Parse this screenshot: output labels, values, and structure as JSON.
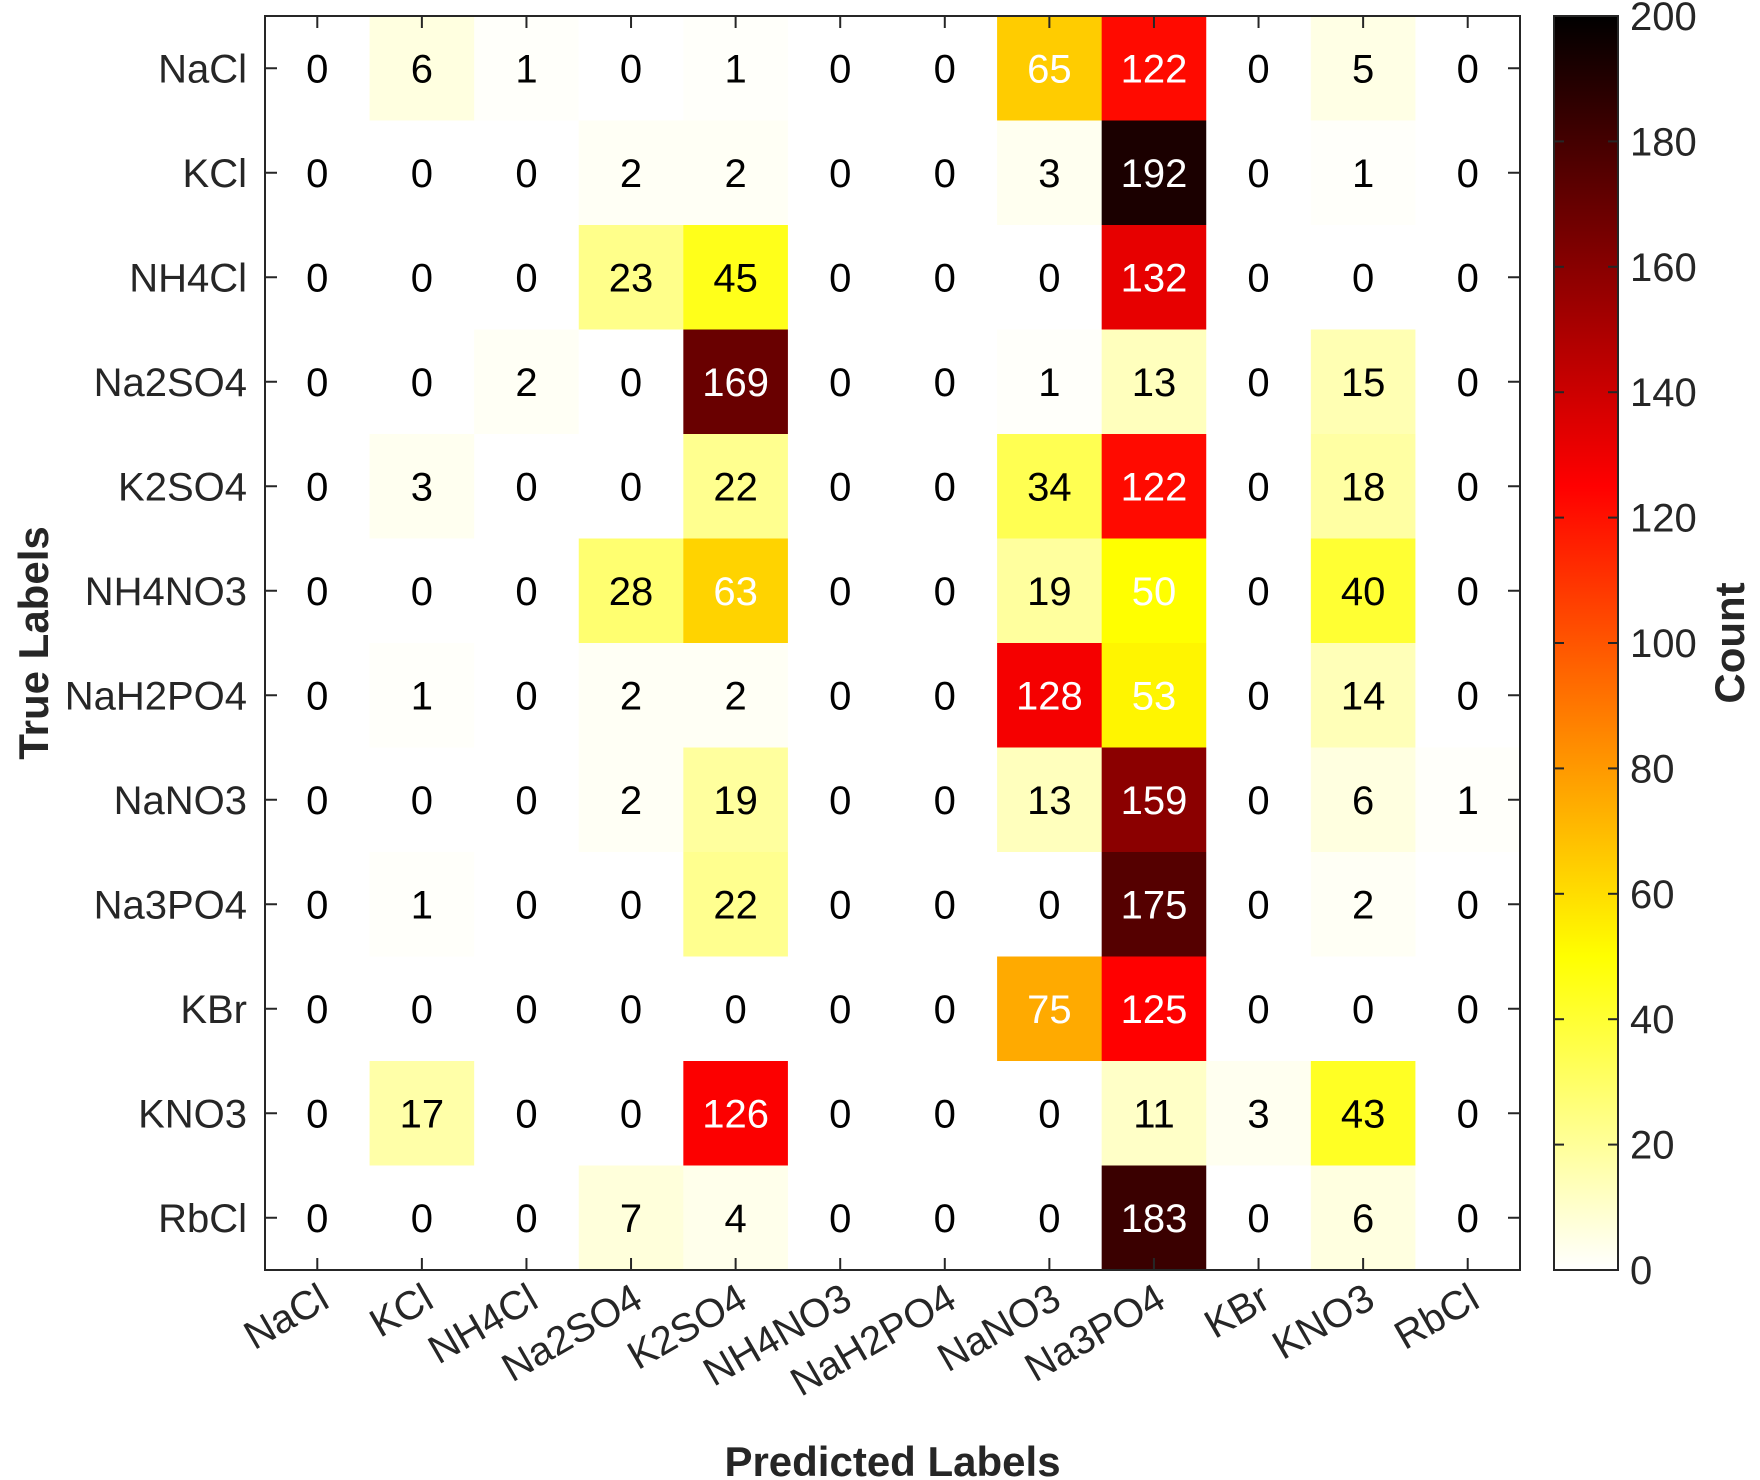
{
  "chart_data": {
    "type": "heatmap",
    "title": "",
    "xlabel": "Predicted Labels",
    "ylabel": "True Labels",
    "x_categories": [
      "NaCl",
      "KCl",
      "NH4Cl",
      "Na2SO4",
      "K2SO4",
      "NH4NO3",
      "NaH2PO4",
      "NaNO3",
      "Na3PO4",
      "KBr",
      "KNO3",
      "RbCl"
    ],
    "y_categories": [
      "NaCl",
      "KCl",
      "NH4Cl",
      "Na2SO4",
      "K2SO4",
      "NH4NO3",
      "NaH2PO4",
      "NaNO3",
      "Na3PO4",
      "KBr",
      "KNO3",
      "RbCl"
    ],
    "values": [
      [
        0,
        6,
        1,
        0,
        1,
        0,
        0,
        65,
        122,
        0,
        5,
        0
      ],
      [
        0,
        0,
        0,
        2,
        2,
        0,
        0,
        3,
        192,
        0,
        1,
        0
      ],
      [
        0,
        0,
        0,
        23,
        45,
        0,
        0,
        0,
        132,
        0,
        0,
        0
      ],
      [
        0,
        0,
        2,
        0,
        169,
        0,
        0,
        1,
        13,
        0,
        15,
        0
      ],
      [
        0,
        3,
        0,
        0,
        22,
        0,
        0,
        34,
        122,
        0,
        18,
        0
      ],
      [
        0,
        0,
        0,
        28,
        63,
        0,
        0,
        19,
        50,
        0,
        40,
        0
      ],
      [
        0,
        1,
        0,
        2,
        2,
        0,
        0,
        128,
        53,
        0,
        14,
        0
      ],
      [
        0,
        0,
        0,
        2,
        19,
        0,
        0,
        13,
        159,
        0,
        6,
        1
      ],
      [
        0,
        1,
        0,
        0,
        22,
        0,
        0,
        0,
        175,
        0,
        2,
        0
      ],
      [
        0,
        0,
        0,
        0,
        0,
        0,
        0,
        75,
        125,
        0,
        0,
        0
      ],
      [
        0,
        17,
        0,
        0,
        126,
        0,
        0,
        0,
        11,
        3,
        43,
        0
      ],
      [
        0,
        0,
        0,
        7,
        4,
        0,
        0,
        0,
        183,
        0,
        6,
        0
      ]
    ],
    "colorbar": {
      "label": "Count",
      "range": [
        0,
        200
      ],
      "ticks": [
        0,
        20,
        40,
        60,
        80,
        100,
        120,
        140,
        160,
        180,
        200
      ],
      "colormap": "hot (reversed)"
    },
    "grid": false,
    "colors": {
      "axis": "#262626",
      "text_dark": "#000000",
      "text_light": "#ffffff"
    }
  }
}
